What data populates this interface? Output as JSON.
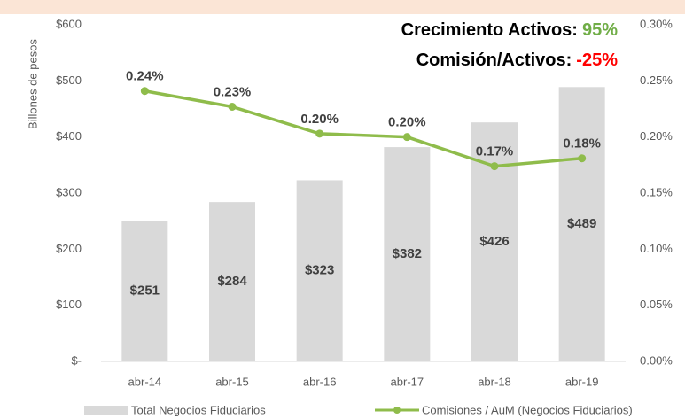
{
  "chart_data": {
    "type": "bar_line",
    "y_label": "Billones de pesos",
    "annotations": [
      {
        "text": "Crecimiento Activos:",
        "value": "95%",
        "color": "#70ad47"
      },
      {
        "text": "Comisión/Activos:",
        "value": "-25%",
        "color": "#ff0000"
      }
    ],
    "categories": [
      "abr-14",
      "abr-15",
      "abr-16",
      "abr-17",
      "abr-18",
      "abr-19"
    ],
    "series": [
      {
        "name": "Total Negocios Fiduciarios",
        "color": "#d9d9d9",
        "values": [
          251,
          284,
          323,
          382,
          426,
          489
        ],
        "value_labels": [
          "$251",
          "$284",
          "$323",
          "$382",
          "$426",
          "$489"
        ]
      },
      {
        "name": "Comisiones / AuM (Negocios Fiduciarios)",
        "color": "#8fbc4b",
        "axis": "y2",
        "values": [
          0.241,
          0.227,
          0.203,
          0.2,
          0.174,
          0.181
        ],
        "value_labels": [
          "0.24%",
          "0.23%",
          "0.20%",
          "0.20%",
          "0.17%",
          "0.18%"
        ]
      }
    ],
    "ylim": [
      0,
      600
    ],
    "yticks": [
      {
        "value": 0,
        "label": "$-"
      },
      {
        "value": 100,
        "label": "$100"
      },
      {
        "value": 200,
        "label": "$200"
      },
      {
        "value": 300,
        "label": "$300"
      },
      {
        "value": 400,
        "label": "$400"
      },
      {
        "value": 500,
        "label": "$500"
      },
      {
        "value": 600,
        "label": "$600"
      }
    ],
    "y2lim": [
      0,
      0.3
    ],
    "y2ticks": [
      {
        "value": 0,
        "label": "0.00%"
      },
      {
        "value": 0.05,
        "label": "0.05%"
      },
      {
        "value": 0.1,
        "label": "0.10%"
      },
      {
        "value": 0.15,
        "label": "0.15%"
      },
      {
        "value": 0.2,
        "label": "0.20%"
      },
      {
        "value": 0.25,
        "label": "0.25%"
      },
      {
        "value": 0.3,
        "label": "0.30%"
      }
    ],
    "legend": "bottom"
  }
}
